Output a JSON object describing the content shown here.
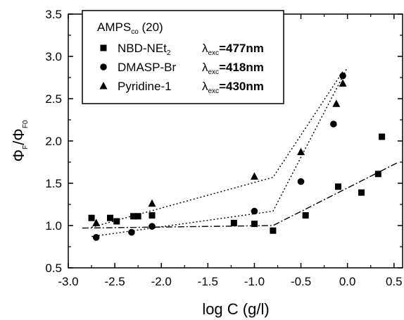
{
  "chart_data": {
    "type": "scatter",
    "xlabel": "log C (g/l)",
    "ylabel": {
      "main": "Φ",
      "sub_num": "F",
      "sep": "/Φ",
      "sub_den": "F0"
    },
    "xlim": [
      -3.0,
      0.6
    ],
    "ylim": [
      0.5,
      3.5
    ],
    "x_ticks": [
      -3.0,
      -2.5,
      -2.0,
      -1.5,
      -1.0,
      -0.5,
      0.0,
      0.5
    ],
    "x_tick_labels": [
      "-3.0",
      "-2.5",
      "-2.0",
      "-1.5",
      "-1.0",
      "-0.5",
      "0.0",
      "0.5"
    ],
    "y_ticks": [
      0.5,
      1.0,
      1.5,
      2.0,
      2.5,
      3.0,
      3.5
    ],
    "y_tick_labels": [
      "0.5",
      "1.0",
      "1.5",
      "2.0",
      "2.5",
      "3.0",
      "3.5"
    ],
    "grid": false,
    "legend": {
      "placement": "top-left",
      "title": {
        "main": "AMPS",
        "sub": "co",
        "suffix": " (20)"
      },
      "entries": [
        {
          "marker": "square",
          "name": "NBD-NEt",
          "name_sub": "2",
          "lambda": "λ",
          "lambda_sub": "exc",
          "value": "=477nm"
        },
        {
          "marker": "circle",
          "name": "DMASP-Br",
          "name_sub": "",
          "lambda": "λ",
          "lambda_sub": "exc",
          "value": "=418nm"
        },
        {
          "marker": "triangle",
          "name": "Pyridine-1",
          "name_sub": "",
          "lambda": "λ",
          "lambda_sub": "exc",
          "value": "=430nm"
        }
      ]
    },
    "series": [
      {
        "marker": "square",
        "x": [
          -2.75,
          -2.55,
          -2.48,
          -2.3,
          -2.25,
          -2.1,
          -1.22,
          -1.0,
          -0.8,
          -0.45,
          -0.1,
          0.15,
          0.33,
          0.37
        ],
        "y": [
          1.09,
          1.09,
          1.05,
          1.11,
          1.11,
          1.12,
          1.03,
          1.02,
          0.94,
          1.12,
          1.46,
          1.39,
          1.61,
          2.05
        ]
      },
      {
        "marker": "circle",
        "x": [
          -2.7,
          -2.32,
          -2.1,
          -1.0,
          -0.5,
          -0.15,
          -0.05
        ],
        "y": [
          0.86,
          0.92,
          0.99,
          1.17,
          1.52,
          2.2,
          2.77
        ]
      },
      {
        "marker": "triangle",
        "x": [
          -2.7,
          -2.1,
          -1.0,
          -0.5,
          -0.12,
          -0.05
        ],
        "y": [
          1.03,
          1.26,
          1.58,
          1.87,
          2.44,
          2.68
        ]
      }
    ],
    "fit_lines": [
      {
        "style": "dash-dot",
        "points": [
          [
            -2.85,
            0.97
          ],
          [
            -0.8,
            1.0
          ],
          [
            0.55,
            1.75
          ]
        ]
      },
      {
        "style": "dotted",
        "points": [
          [
            -2.75,
            0.87
          ],
          [
            -0.8,
            1.17
          ],
          [
            0.0,
            2.87
          ]
        ]
      },
      {
        "style": "dotted",
        "points": [
          [
            -2.75,
            0.98
          ],
          [
            -0.8,
            1.57
          ],
          [
            -0.05,
            2.82
          ]
        ]
      }
    ]
  }
}
